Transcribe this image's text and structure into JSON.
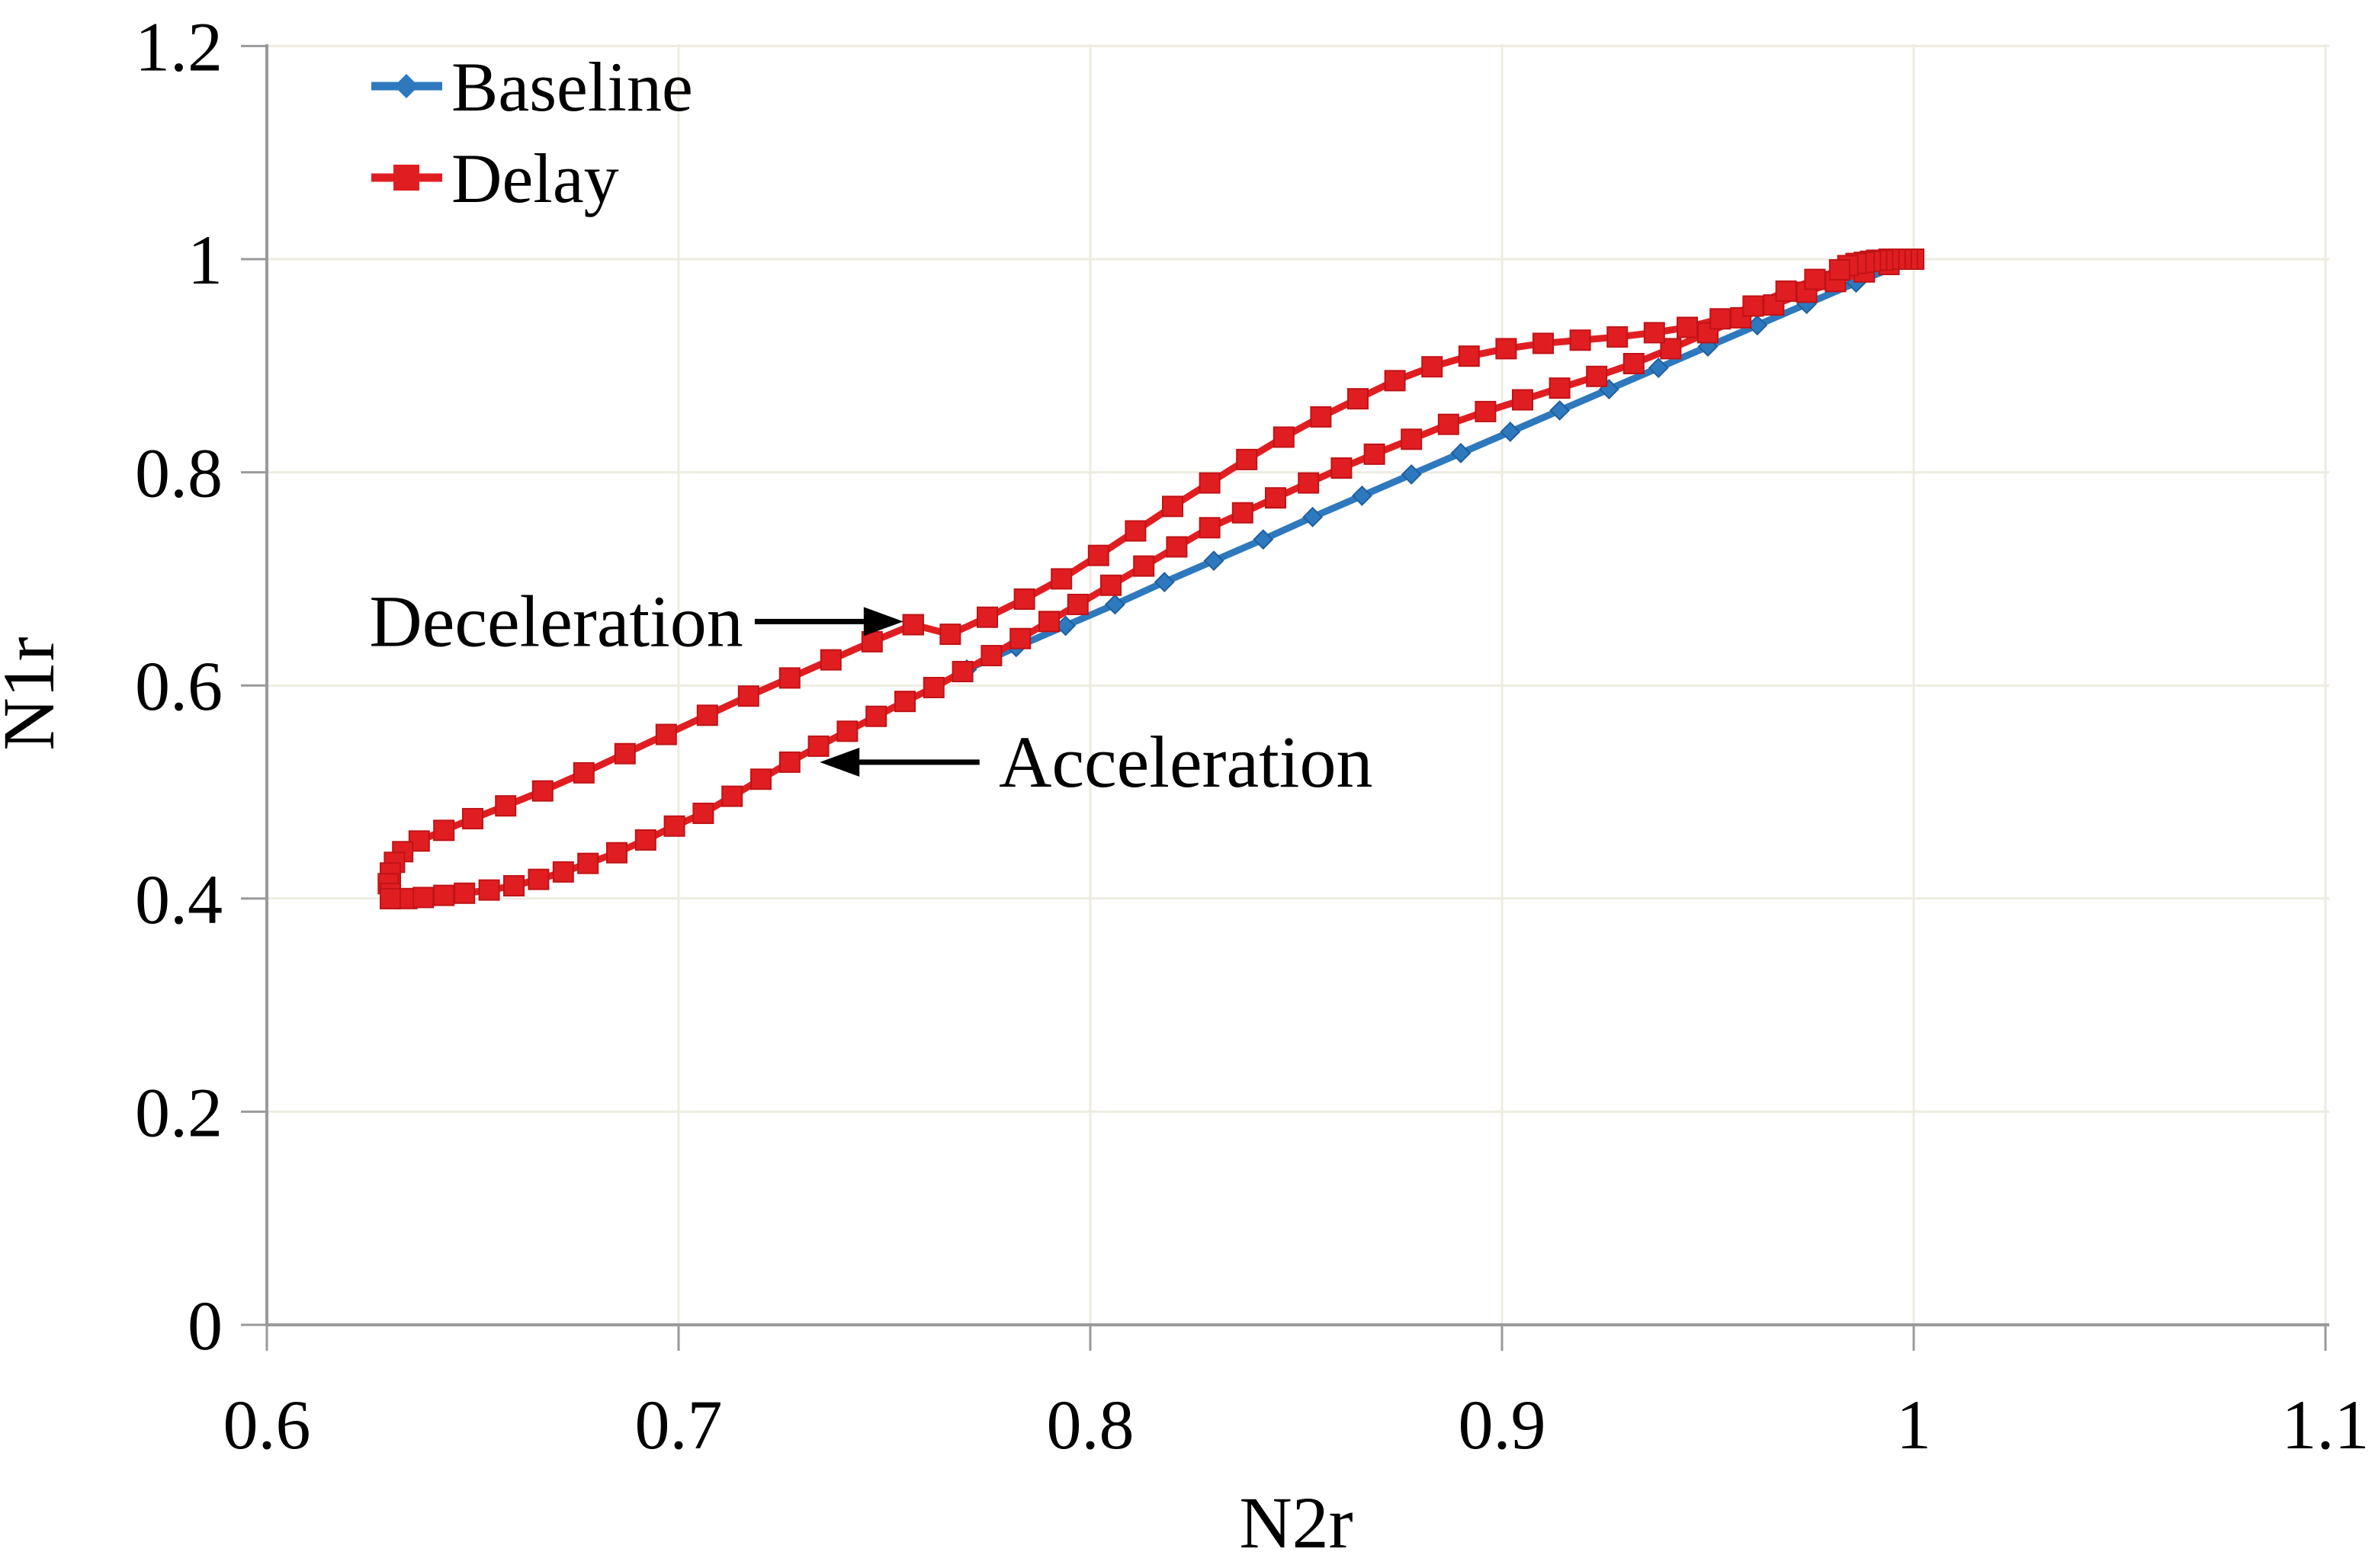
{
  "chart_data": {
    "type": "line",
    "title": "",
    "xlabel": "N2r",
    "ylabel": "N1r",
    "xlim": [
      0.6,
      1.1
    ],
    "ylim": [
      0,
      1.2
    ],
    "grid": true,
    "legend_position": "top-left",
    "axis_color": "#9a9a9a",
    "grid_color": "#eeebe1",
    "x_ticks": [
      {
        "v": 0.6,
        "label": "0.6"
      },
      {
        "v": 0.7,
        "label": "0.7"
      },
      {
        "v": 0.8,
        "label": "0.8"
      },
      {
        "v": 0.9,
        "label": "0.9"
      },
      {
        "v": 1.0,
        "label": "1"
      },
      {
        "v": 1.1,
        "label": "1.1"
      }
    ],
    "y_ticks": [
      {
        "v": 0,
        "label": "0"
      },
      {
        "v": 0.2,
        "label": "0.2"
      },
      {
        "v": 0.4,
        "label": "0.4"
      },
      {
        "v": 0.6,
        "label": "0.6"
      },
      {
        "v": 0.8,
        "label": "0.8"
      },
      {
        "v": 1.0,
        "label": "1"
      },
      {
        "v": 1.2,
        "label": "1.2"
      }
    ],
    "series": [
      {
        "name": "Baseline",
        "color": "#2e79be",
        "stroke_dark": "#1f5f9e",
        "marker": "diamond",
        "points": [
          [
            0.77,
            0.615
          ],
          [
            0.782,
            0.636
          ],
          [
            0.794,
            0.656
          ],
          [
            0.806,
            0.676
          ],
          [
            0.818,
            0.697
          ],
          [
            0.83,
            0.717
          ],
          [
            0.842,
            0.737
          ],
          [
            0.854,
            0.758
          ],
          [
            0.866,
            0.778
          ],
          [
            0.878,
            0.798
          ],
          [
            0.89,
            0.818
          ],
          [
            0.902,
            0.838
          ],
          [
            0.914,
            0.858
          ],
          [
            0.926,
            0.878
          ],
          [
            0.938,
            0.898
          ],
          [
            0.95,
            0.918
          ],
          [
            0.962,
            0.938
          ],
          [
            0.974,
            0.958
          ],
          [
            0.986,
            0.978
          ],
          [
            1.0,
            1.0
          ]
        ]
      },
      {
        "name": "Delay",
        "color": "#e01e22",
        "stroke_dark": "#c01316",
        "marker": "square",
        "points": [
          [
            0.63,
            0.4
          ],
          [
            0.634,
            0.4
          ],
          [
            0.638,
            0.401
          ],
          [
            0.643,
            0.403
          ],
          [
            0.648,
            0.405
          ],
          [
            0.654,
            0.408
          ],
          [
            0.66,
            0.412
          ],
          [
            0.666,
            0.418
          ],
          [
            0.672,
            0.425
          ],
          [
            0.678,
            0.433
          ],
          [
            0.685,
            0.443
          ],
          [
            0.692,
            0.455
          ],
          [
            0.699,
            0.468
          ],
          [
            0.706,
            0.48
          ],
          [
            0.713,
            0.496
          ],
          [
            0.72,
            0.512
          ],
          [
            0.727,
            0.528
          ],
          [
            0.734,
            0.543
          ],
          [
            0.741,
            0.557
          ],
          [
            0.748,
            0.571
          ],
          [
            0.755,
            0.585
          ],
          [
            0.762,
            0.598
          ],
          [
            0.769,
            0.613
          ],
          [
            0.776,
            0.628
          ],
          [
            0.783,
            0.644
          ],
          [
            0.79,
            0.66
          ],
          [
            0.797,
            0.676
          ],
          [
            0.805,
            0.694
          ],
          [
            0.813,
            0.712
          ],
          [
            0.821,
            0.73
          ],
          [
            0.829,
            0.748
          ],
          [
            0.837,
            0.762
          ],
          [
            0.845,
            0.776
          ],
          [
            0.853,
            0.79
          ],
          [
            0.861,
            0.804
          ],
          [
            0.869,
            0.817
          ],
          [
            0.878,
            0.831
          ],
          [
            0.887,
            0.845
          ],
          [
            0.896,
            0.857
          ],
          [
            0.905,
            0.868
          ],
          [
            0.914,
            0.879
          ],
          [
            0.923,
            0.89
          ],
          [
            0.932,
            0.902
          ],
          [
            0.941,
            0.916
          ],
          [
            0.95,
            0.931
          ],
          [
            0.958,
            0.945
          ],
          [
            0.966,
            0.957
          ],
          [
            0.974,
            0.969
          ],
          [
            0.981,
            0.979
          ],
          [
            0.988,
            0.988
          ],
          [
            0.994,
            0.995
          ],
          [
            1.0,
            1.0
          ],
          [
            0.9985,
            1.0
          ],
          [
            0.997,
            1.0
          ],
          [
            0.9955,
            1.0
          ],
          [
            0.994,
            1.0
          ],
          [
            0.9925,
            0.999
          ],
          [
            0.991,
            0.999
          ],
          [
            0.9895,
            0.998
          ],
          [
            0.988,
            0.997
          ],
          [
            0.986,
            0.996
          ],
          [
            0.984,
            0.994
          ],
          [
            0.982,
            0.99
          ],
          [
            0.976,
            0.981
          ],
          [
            0.969,
            0.97
          ],
          [
            0.961,
            0.956
          ],
          [
            0.953,
            0.944
          ],
          [
            0.945,
            0.936
          ],
          [
            0.937,
            0.931
          ],
          [
            0.928,
            0.927
          ],
          [
            0.919,
            0.924
          ],
          [
            0.91,
            0.921
          ],
          [
            0.901,
            0.916
          ],
          [
            0.892,
            0.909
          ],
          [
            0.883,
            0.899
          ],
          [
            0.874,
            0.886
          ],
          [
            0.865,
            0.869
          ],
          [
            0.856,
            0.852
          ],
          [
            0.847,
            0.833
          ],
          [
            0.838,
            0.812
          ],
          [
            0.829,
            0.79
          ],
          [
            0.82,
            0.768
          ],
          [
            0.811,
            0.745
          ],
          [
            0.802,
            0.722
          ],
          [
            0.793,
            0.7
          ],
          [
            0.784,
            0.681
          ],
          [
            0.775,
            0.664
          ],
          [
            0.766,
            0.648
          ],
          [
            0.757,
            0.657
          ],
          [
            0.757,
            0.657
          ]
        ]
      }
    ],
    "delay_deceleration_tail": [
      [
        0.757,
        0.657
      ],
      [
        0.747,
        0.641
      ],
      [
        0.737,
        0.624
      ],
      [
        0.727,
        0.607
      ],
      [
        0.717,
        0.59
      ],
      [
        0.707,
        0.572
      ],
      [
        0.697,
        0.554
      ],
      [
        0.687,
        0.536
      ],
      [
        0.677,
        0.518
      ],
      [
        0.667,
        0.501
      ],
      [
        0.658,
        0.487
      ],
      [
        0.65,
        0.475
      ],
      [
        0.643,
        0.464
      ],
      [
        0.637,
        0.454
      ],
      [
        0.633,
        0.444
      ],
      [
        0.631,
        0.434
      ],
      [
        0.63,
        0.424
      ],
      [
        0.6295,
        0.414
      ],
      [
        0.63,
        0.405
      ],
      [
        0.63,
        0.4
      ]
    ],
    "annotations": [
      {
        "text": "Deceleration",
        "align": "right",
        "text_x": 0.7157,
        "text_y": 0.66,
        "arrow_from": [
          0.7185,
          0.66
        ],
        "arrow_to": [
          0.7546,
          0.66
        ]
      },
      {
        "text": "Acceleration",
        "align": "left",
        "text_x": 0.7778,
        "text_y": 0.528,
        "arrow_from": [
          0.7731,
          0.528
        ],
        "arrow_to": [
          0.7343,
          0.528
        ]
      }
    ]
  }
}
